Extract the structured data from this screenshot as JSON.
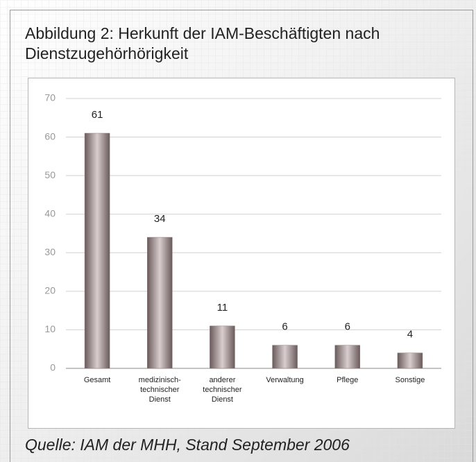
{
  "chart_data": {
    "type": "bar",
    "title": "Abbildung 2: Herkunft der IAM-Beschäftigten nach Dienstzugehörhörigkeit",
    "source": "Quelle: IAM der MHH, Stand September 2006",
    "categories": [
      "Gesamt",
      "medizinisch-technischer Dienst",
      "anderer technischer Dienst",
      "Verwaltung",
      "Pflege",
      "Sonstige"
    ],
    "values": [
      61,
      34,
      11,
      6,
      6,
      4
    ],
    "color": "#8a7a7a",
    "ylim": [
      0,
      70
    ],
    "yticks": [
      0,
      10,
      20,
      30,
      40,
      50,
      60,
      70
    ],
    "grid": true
  }
}
